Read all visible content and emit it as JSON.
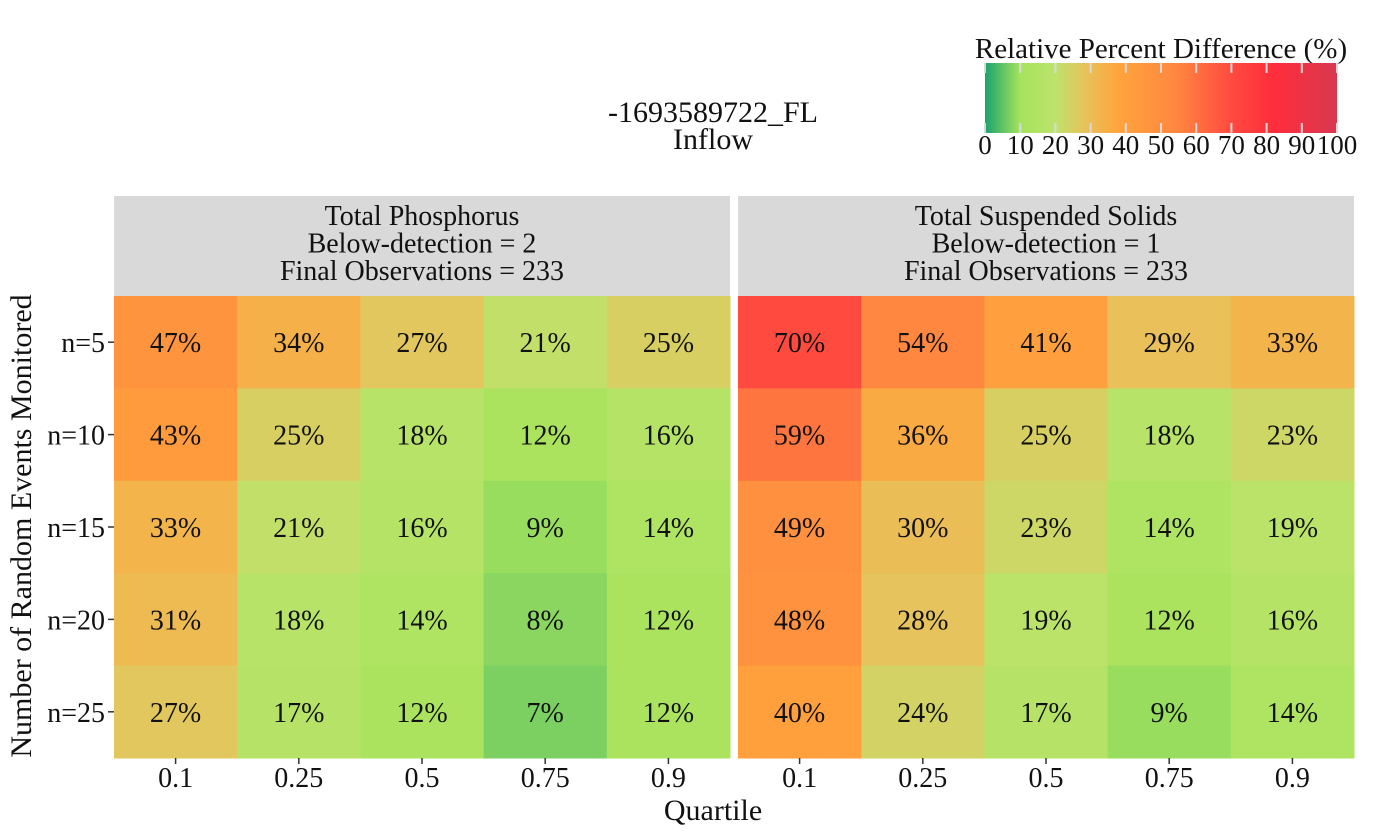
{
  "chart_data": {
    "type": "heatmap",
    "title_lines": [
      "-1693589722_FL",
      "Inflow"
    ],
    "xlabel": "Quartile",
    "ylabel": "Number of Random Events Monitored",
    "x_categories": [
      "0.1",
      "0.25",
      "0.5",
      "0.75",
      "0.9"
    ],
    "y_categories": [
      "n=5",
      "n=10",
      "n=15",
      "n=20",
      "n=25"
    ],
    "value_format": "%",
    "colorbar": {
      "title": "Relative Percent Difference (%)",
      "range": [
        0,
        100
      ],
      "ticks": [
        "0",
        "10",
        "20",
        "30",
        "40",
        "50",
        "60",
        "70",
        "80",
        "90",
        "100"
      ],
      "stops": [
        {
          "v": 0,
          "c": "#1aa36f"
        },
        {
          "v": 10,
          "c": "#a6e35c"
        },
        {
          "v": 20,
          "c": "#bde36c"
        },
        {
          "v": 28,
          "c": "#e6c35c"
        },
        {
          "v": 38,
          "c": "#ffa43c"
        },
        {
          "v": 55,
          "c": "#ff8540"
        },
        {
          "v": 70,
          "c": "#ff4a40"
        },
        {
          "v": 82,
          "c": "#ff2d3c"
        },
        {
          "v": 100,
          "c": "#d8384f"
        }
      ]
    },
    "panels": [
      {
        "header_lines": [
          "Total Phosphorus",
          "Below-detection = 2",
          "Final Observations = 233"
        ],
        "values": [
          [
            47,
            34,
            27,
            21,
            25
          ],
          [
            43,
            25,
            18,
            12,
            16
          ],
          [
            33,
            21,
            16,
            9,
            14
          ],
          [
            31,
            18,
            14,
            8,
            12
          ],
          [
            27,
            17,
            12,
            7,
            12
          ]
        ]
      },
      {
        "header_lines": [
          "Total Suspended Solids",
          "Below-detection = 1",
          "Final Observations = 233"
        ],
        "values": [
          [
            70,
            54,
            41,
            29,
            33
          ],
          [
            59,
            36,
            25,
            18,
            23
          ],
          [
            49,
            30,
            23,
            14,
            19
          ],
          [
            48,
            28,
            19,
            12,
            16
          ],
          [
            40,
            24,
            17,
            9,
            14
          ]
        ]
      }
    ]
  }
}
